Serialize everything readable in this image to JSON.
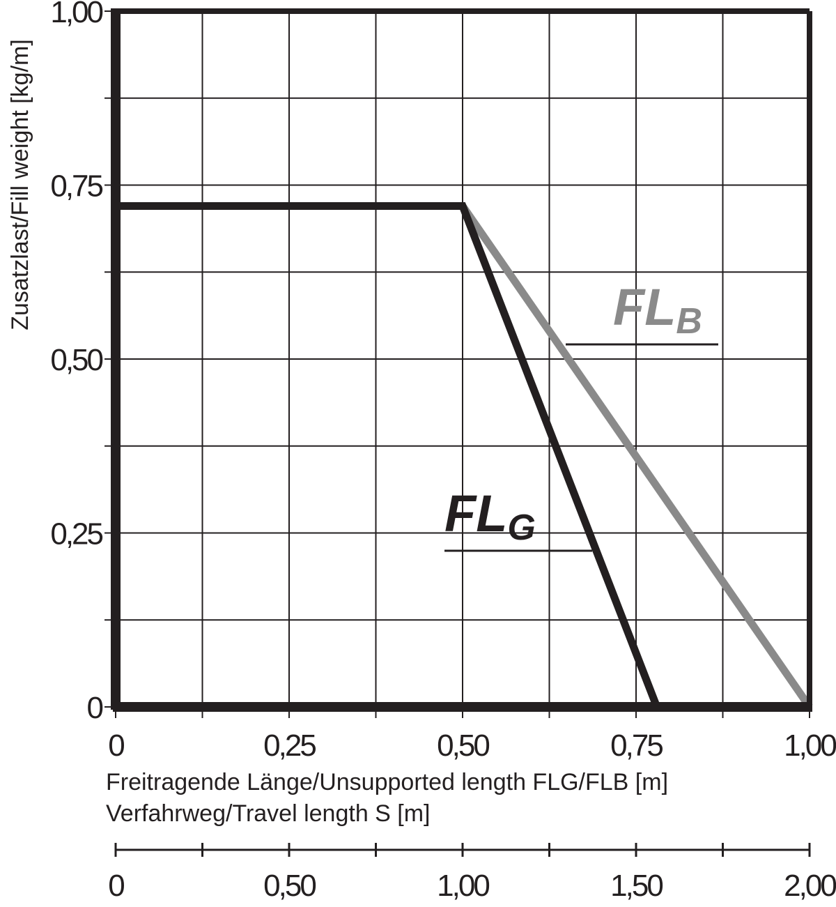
{
  "chart_data": {
    "type": "line",
    "title": "",
    "ylabel": "Zusatzlast/Fill weight [kg/m]",
    "xlabel_lines": [
      "Freitragende Länge/Unsupported length FLG/FLB [m]",
      "Verfahrweg/Travel length S [m]"
    ],
    "xlim": [
      0,
      1
    ],
    "ylim": [
      0,
      1
    ],
    "grid": true,
    "x_ticks": [
      0,
      0.25,
      0.5,
      0.75,
      1.0
    ],
    "x_tick_labels": [
      "0",
      "0,25",
      "0,50",
      "0,75",
      "1,00"
    ],
    "y_ticks": [
      0,
      0.25,
      0.5,
      0.75,
      1.0
    ],
    "y_tick_labels": [
      "0",
      "0,25",
      "0,50",
      "0,75",
      "1,00"
    ],
    "secondary_x_ticks": [
      0,
      0.5,
      1.0,
      1.5,
      2.0
    ],
    "secondary_x_tick_labels": [
      "0",
      "0,50",
      "1,00",
      "1,50",
      "2,00"
    ],
    "secondary_xlim": [
      0,
      2
    ],
    "series": [
      {
        "name": "FLG",
        "label_main": "FL",
        "label_sub": "G",
        "color": "#231f20",
        "x": [
          0,
          0.5,
          0.78
        ],
        "y": [
          0.72,
          0.72,
          0
        ]
      },
      {
        "name": "FLB",
        "label_main": "FL",
        "label_sub": "B",
        "color": "#8a8a8a",
        "x": [
          0.5,
          1.0
        ],
        "y": [
          0.72,
          0
        ]
      }
    ]
  }
}
